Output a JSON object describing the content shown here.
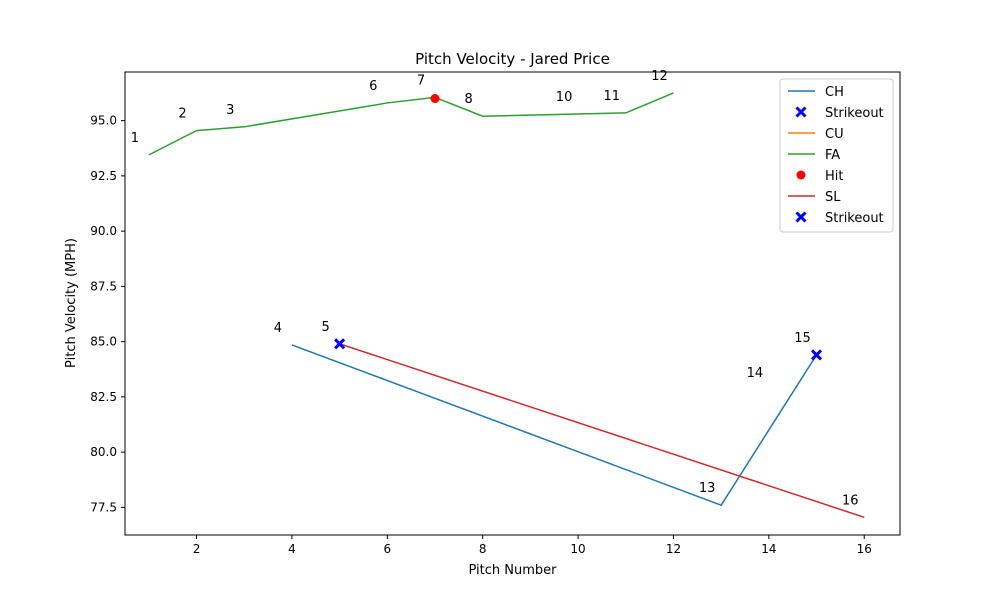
{
  "chart_data": {
    "type": "line",
    "title": "Pitch Velocity - Jared Price",
    "xlabel": "Pitch Number",
    "ylabel": "Pitch Velocity (MPH)",
    "xlim": [
      0.5,
      16.75
    ],
    "ylim": [
      76.25,
      97.2
    ],
    "xticks": [
      2,
      4,
      6,
      8,
      10,
      12,
      14,
      16
    ],
    "yticks": [
      77.5,
      80.0,
      82.5,
      85.0,
      87.5,
      90.0,
      92.5,
      95.0
    ],
    "grid": false,
    "legend_position": "top-right",
    "series": [
      {
        "name": "CH",
        "kind": "line",
        "color": "#1f77b4",
        "x": [
          4,
          13,
          15
        ],
        "y": [
          84.85,
          77.6,
          84.4
        ]
      },
      {
        "name": "Strikeout",
        "kind": "marker",
        "marker": "x",
        "color": "#0000ff",
        "x": [
          15
        ],
        "y": [
          84.4
        ]
      },
      {
        "name": "CU",
        "kind": "line",
        "color": "#ff7f0e",
        "x": [],
        "y": []
      },
      {
        "name": "FA",
        "kind": "line",
        "color": "#2ca02c",
        "x": [
          1,
          2,
          3,
          6,
          7,
          8,
          11,
          12
        ],
        "y": [
          93.45,
          94.55,
          94.72,
          95.8,
          96.05,
          95.2,
          95.35,
          96.25
        ]
      },
      {
        "name": "Hit",
        "kind": "marker",
        "marker": "o",
        "color": "#ff0000",
        "x": [
          7
        ],
        "y": [
          96.0
        ]
      },
      {
        "name": "SL",
        "kind": "line",
        "color": "#d62728",
        "x": [
          5,
          16
        ],
        "y": [
          84.9,
          77.05
        ]
      },
      {
        "name": "Strikeout",
        "kind": "marker",
        "marker": "x",
        "color": "#0000ff",
        "x": [
          5
        ],
        "y": [
          84.9
        ]
      }
    ],
    "point_labels": [
      {
        "text": "1",
        "x": 1,
        "y": 93.45
      },
      {
        "text": "2",
        "x": 2,
        "y": 94.55
      },
      {
        "text": "3",
        "x": 3,
        "y": 94.72
      },
      {
        "text": "4",
        "x": 4,
        "y": 84.85
      },
      {
        "text": "5",
        "x": 5,
        "y": 84.9
      },
      {
        "text": "6",
        "x": 6,
        "y": 95.8
      },
      {
        "text": "7",
        "x": 7,
        "y": 96.05
      },
      {
        "text": "8",
        "x": 8,
        "y": 95.2
      },
      {
        "text": "10",
        "x": 10,
        "y": 95.3
      },
      {
        "text": "11",
        "x": 11,
        "y": 95.35
      },
      {
        "text": "12",
        "x": 12,
        "y": 96.25
      },
      {
        "text": "13",
        "x": 13,
        "y": 77.6
      },
      {
        "text": "14",
        "x": 14,
        "y": 82.8
      },
      {
        "text": "15",
        "x": 15,
        "y": 84.4
      },
      {
        "text": "16",
        "x": 16,
        "y": 77.05
      }
    ]
  }
}
